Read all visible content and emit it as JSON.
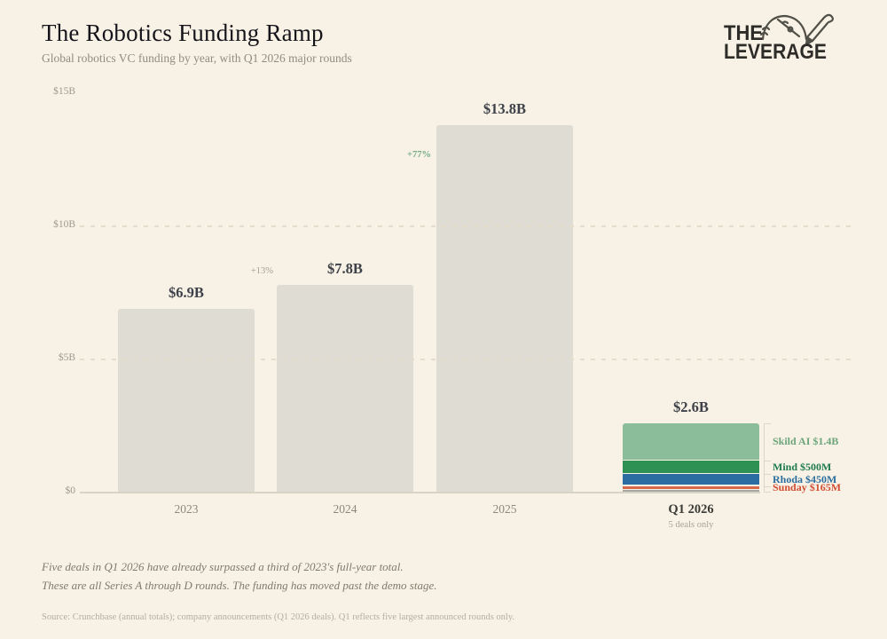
{
  "header": {
    "title": "The Robotics Funding Ramp",
    "subtitle": "Global robotics VC funding by year, with Q1 2026 major rounds",
    "logo_line1": "THE",
    "logo_line2": "LEVERAGE"
  },
  "chart_data": {
    "type": "bar",
    "title": "The Robotics Funding Ramp",
    "subtitle": "Global robotics VC funding by year, with Q1 2026 major rounds",
    "unit": "USD billions",
    "ylim": [
      0,
      15
    ],
    "yticks": [
      {
        "label": "$0",
        "value": 0
      },
      {
        "label": "$5B",
        "value": 5
      },
      {
        "label": "$10B",
        "value": 10
      },
      {
        "label": "$15B",
        "value": 15
      }
    ],
    "gridlines": [
      5,
      10
    ],
    "categories": [
      "2023",
      "2024",
      "2025",
      "Q1 2026"
    ],
    "values_billions": [
      6.9,
      7.8,
      13.8,
      2.6
    ],
    "bar_labels": [
      "$6.9B",
      "$7.8B",
      "$13.8B",
      "$2.6B"
    ],
    "bar_color": "#dfdcd3",
    "pct_changes": [
      {
        "at_category": "2024",
        "label": "+13%",
        "color": "#a5a295"
      },
      {
        "at_category": "2025",
        "label": "+77%",
        "color": "#74aa86"
      }
    ],
    "q1_2026": {
      "note": "5 deals only",
      "segments": [
        {
          "name": "Skild AI",
          "label": "Skild AI $1.4B",
          "value_billions": 1.4,
          "color": "#8cbd9a",
          "label_color": "#6ca57c"
        },
        {
          "name": "Mind",
          "label": "Mind $500M",
          "value_billions": 0.5,
          "color": "#2d9154",
          "label_color": "#1e7b4e"
        },
        {
          "name": "Rhoda",
          "label": "Rhoda $450M",
          "value_billions": 0.45,
          "color": "#2b6da0",
          "label_color": "#2b6d9e"
        },
        {
          "name": "Sunday",
          "label": "Sunday $165M",
          "value_billions": 0.165,
          "color": "#d8684a",
          "label_color": "#d14e33"
        },
        {
          "name": "fifth-deal-unlabeled",
          "label": "",
          "value_billions": 0.085,
          "color": "#a9a8a0",
          "label_color": ""
        }
      ]
    },
    "legend_position": "right-of-q1-bar"
  },
  "footer": {
    "note_line1": "Five deals in Q1 2026 have already surpassed a third of 2023's full-year total.",
    "note_line2": "These are all Series A through D rounds. The funding has moved past the demo stage.",
    "source": "Source: Crunchbase (annual totals); company announcements (Q1 2026 deals). Q1 reflects five largest announced rounds only."
  }
}
